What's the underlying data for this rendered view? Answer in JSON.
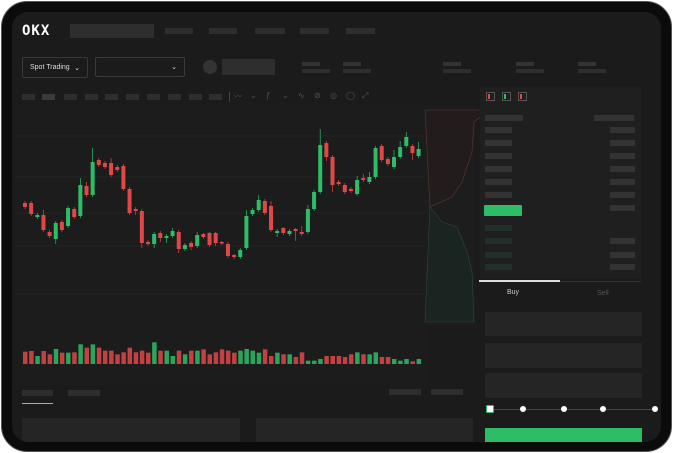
{
  "header": {
    "logo": "OKX"
  },
  "market": {
    "mode_label": "Spot Trading",
    "pair_select": ""
  },
  "order_form": {
    "tabs": [
      {
        "label": "Buy",
        "active": true
      },
      {
        "label": "Sell",
        "active": false
      }
    ],
    "slider_level": 0,
    "buy_button": ""
  },
  "colors": {
    "up": "#2dbd67",
    "down": "#e04848",
    "background": "#1b1b1b",
    "panel": "#1f1f1f"
  },
  "icons": [
    "chevron-down-icon",
    "order-book-both-icon",
    "order-book-bids-icon",
    "order-book-asks-icon"
  ],
  "chart_data": {
    "type": "candlestick",
    "candles": [
      [
        57,
        59,
        51,
        53
      ],
      [
        57,
        59,
        44,
        46
      ],
      [
        43,
        47,
        41,
        45
      ],
      [
        45,
        50,
        28,
        30
      ],
      [
        28,
        30,
        22,
        24
      ],
      [
        21,
        39,
        16,
        37
      ],
      [
        38,
        40,
        28,
        30
      ],
      [
        34,
        54,
        32,
        52
      ],
      [
        51,
        53,
        41,
        43
      ],
      [
        44,
        82,
        42,
        75
      ],
      [
        74,
        78,
        63,
        65
      ],
      [
        65,
        112,
        63,
        98
      ],
      [
        100,
        102,
        93,
        95
      ],
      [
        97,
        99,
        91,
        93
      ],
      [
        97,
        102,
        83,
        85
      ],
      [
        93,
        95,
        88,
        90
      ],
      [
        94,
        96,
        69,
        71
      ],
      [
        71,
        73,
        45,
        47
      ],
      [
        51,
        53,
        45,
        49
      ],
      [
        49,
        51,
        12,
        17
      ],
      [
        18,
        20,
        14,
        16
      ],
      [
        16,
        28,
        12,
        26
      ],
      [
        27,
        29,
        18,
        22
      ],
      [
        22,
        26,
        17,
        24
      ],
      [
        24,
        32,
        22,
        29
      ],
      [
        28,
        30,
        7,
        11
      ],
      [
        11,
        17,
        9,
        15
      ],
      [
        17,
        19,
        10,
        13
      ],
      [
        14,
        28,
        12,
        25
      ],
      [
        26,
        27,
        21,
        23
      ],
      [
        27,
        28,
        13,
        15
      ],
      [
        27,
        28,
        14,
        17
      ],
      [
        18,
        19,
        15,
        17
      ],
      [
        16,
        18,
        2,
        4
      ],
      [
        5,
        6,
        1,
        3
      ],
      [
        3,
        12,
        1,
        10
      ],
      [
        12,
        50,
        10,
        44
      ],
      [
        46,
        52,
        44,
        50
      ],
      [
        50,
        65,
        48,
        60
      ],
      [
        59,
        61,
        45,
        47
      ],
      [
        54,
        59,
        28,
        30
      ],
      [
        27,
        31,
        23,
        29
      ],
      [
        32,
        33,
        25,
        27
      ],
      [
        26,
        31,
        24,
        29
      ],
      [
        31,
        32,
        19,
        29
      ],
      [
        28,
        34,
        24,
        26
      ],
      [
        28,
        55,
        26,
        51
      ],
      [
        51,
        70,
        49,
        68
      ],
      [
        68,
        131,
        66,
        115
      ],
      [
        117,
        119,
        99,
        103
      ],
      [
        103,
        105,
        68,
        75
      ],
      [
        78,
        80,
        74,
        76
      ],
      [
        75,
        77,
        66,
        68
      ],
      [
        71,
        73,
        67,
        69
      ],
      [
        66,
        84,
        64,
        80
      ],
      [
        82,
        86,
        78,
        80
      ],
      [
        78,
        88,
        76,
        83
      ],
      [
        83,
        114,
        81,
        112
      ],
      [
        114,
        116,
        98,
        100
      ],
      [
        101,
        103,
        94,
        96
      ],
      [
        93,
        110,
        91,
        103
      ],
      [
        103,
        119,
        101,
        113
      ],
      [
        114,
        128,
        112,
        123
      ],
      [
        114,
        116,
        100,
        107
      ],
      [
        104,
        118,
        102,
        111
      ]
    ],
    "volumes": [
      37,
      39,
      24,
      39,
      29,
      45,
      34,
      34,
      35,
      59,
      49,
      59,
      49,
      40,
      40,
      29,
      35,
      49,
      35,
      40,
      34,
      65,
      40,
      40,
      24,
      40,
      29,
      40,
      40,
      44,
      29,
      35,
      44,
      40,
      34,
      40,
      45,
      40,
      34,
      44,
      24,
      34,
      29,
      29,
      21,
      35,
      10,
      10,
      15,
      24,
      24,
      24,
      21,
      29,
      35,
      29,
      29,
      35,
      21,
      21,
      15,
      10,
      15,
      8,
      15
    ]
  }
}
